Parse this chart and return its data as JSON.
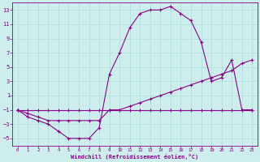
{
  "xlabel": "Windchill (Refroidissement éolien,°C)",
  "ylabel": "",
  "bg_color": "#ceeeed",
  "line_color": "#880088",
  "grid_color": "#aadddd",
  "xlim": [
    -0.5,
    23.5
  ],
  "ylim": [
    -6,
    14
  ],
  "xticks": [
    0,
    1,
    2,
    3,
    4,
    5,
    6,
    7,
    8,
    9,
    10,
    11,
    12,
    13,
    14,
    15,
    16,
    17,
    18,
    19,
    20,
    21,
    22,
    23
  ],
  "yticks": [
    -5,
    -3,
    -1,
    1,
    3,
    5,
    7,
    9,
    11,
    13
  ],
  "line1_x": [
    0,
    1,
    2,
    3,
    4,
    5,
    6,
    7,
    8,
    9,
    10,
    11,
    12,
    13,
    14,
    15,
    16,
    17,
    18,
    19,
    20,
    21,
    22,
    23
  ],
  "line1_y": [
    -1,
    -2,
    -2.5,
    -3,
    -4,
    -5,
    -5,
    -5,
    -3.5,
    4,
    7,
    10.5,
    12.5,
    13,
    13,
    13.5,
    12.5,
    11.5,
    8.5,
    3,
    3.5,
    6,
    -1,
    -1
  ],
  "line2_x": [
    0,
    1,
    2,
    3,
    4,
    5,
    6,
    7,
    8,
    9,
    10,
    11,
    12,
    13,
    14,
    15,
    16,
    17,
    18,
    19,
    20,
    21,
    22,
    23
  ],
  "line2_y": [
    -1,
    -1.5,
    -2,
    -2.5,
    -2.5,
    -2.5,
    -2.5,
    -2.5,
    -2.5,
    -1,
    -1,
    -0.5,
    0,
    0.5,
    1,
    1.5,
    2,
    2.5,
    3,
    3.5,
    4,
    4.5,
    5.5,
    6
  ],
  "line3_x": [
    0,
    1,
    2,
    3,
    4,
    5,
    6,
    7,
    8,
    9,
    10,
    11,
    12,
    13,
    14,
    15,
    16,
    17,
    18,
    19,
    20,
    21,
    22,
    23
  ],
  "line3_y": [
    -1,
    -1,
    -1,
    -1,
    -1,
    -1,
    -1,
    -1,
    -1,
    -1,
    -1,
    -1,
    -1,
    -1,
    -1,
    -1,
    -1,
    -1,
    -1,
    -1,
    -1,
    -1,
    -1,
    -1
  ]
}
